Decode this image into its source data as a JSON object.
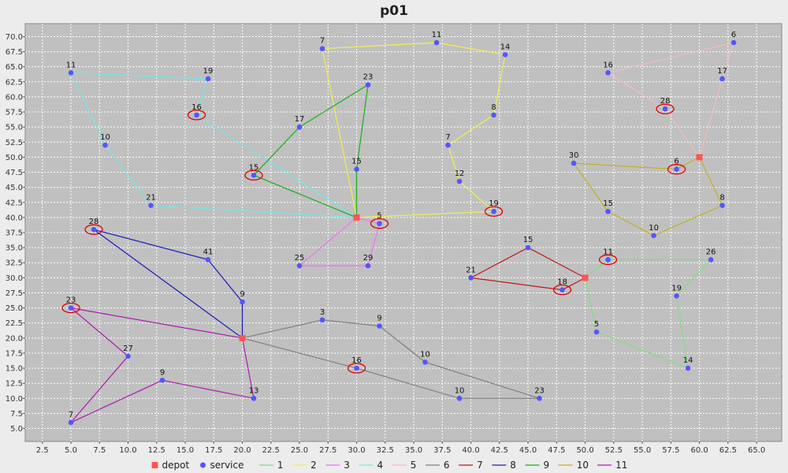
{
  "chart_data": {
    "type": "scatter",
    "title": "p01",
    "xlim": [
      1.0,
      67.2
    ],
    "ylim": [
      2.85,
      72.15
    ],
    "x_ticks": [
      "2.5",
      "5.0",
      "7.5",
      "10.0",
      "12.5",
      "15.0",
      "17.5",
      "20.0",
      "22.5",
      "25.0",
      "27.5",
      "30.0",
      "32.5",
      "35.0",
      "37.5",
      "40.0",
      "42.5",
      "45.0",
      "47.5",
      "50.0",
      "52.5",
      "55.0",
      "57.5",
      "60.0",
      "62.5",
      "65.0"
    ],
    "y_ticks": [
      "5.0",
      "7.5",
      "10.0",
      "12.5",
      "15.0",
      "17.5",
      "20.0",
      "22.5",
      "25.0",
      "27.5",
      "30.0",
      "32.5",
      "35.0",
      "37.5",
      "40.0",
      "42.5",
      "45.0",
      "47.5",
      "50.0",
      "52.5",
      "55.0",
      "57.5",
      "60.0",
      "62.5",
      "65.0",
      "67.5",
      "70.0"
    ],
    "grid": true,
    "legend_position": "bottom",
    "legend": [
      {
        "label": "depot",
        "color": "#ff5555",
        "kind": "square"
      },
      {
        "label": "service",
        "color": "#5555ff",
        "kind": "circle"
      },
      {
        "label": "1",
        "color": "#7fe07f",
        "kind": "line"
      },
      {
        "label": "2",
        "color": "#f0f050",
        "kind": "line"
      },
      {
        "label": "3",
        "color": "#f070f0",
        "kind": "line"
      },
      {
        "label": "4",
        "color": "#70e8e8",
        "kind": "line"
      },
      {
        "label": "5",
        "color": "#f4bcbc",
        "kind": "line"
      },
      {
        "label": "6",
        "color": "#808080",
        "kind": "line"
      },
      {
        "label": "7",
        "color": "#c01818",
        "kind": "line"
      },
      {
        "label": "8",
        "color": "#1818c0",
        "kind": "line"
      },
      {
        "label": "9",
        "color": "#18b018",
        "kind": "line"
      },
      {
        "label": "10",
        "color": "#c0b020",
        "kind": "line"
      },
      {
        "label": "11",
        "color": "#b018b0",
        "kind": "line"
      }
    ],
    "depots": [
      {
        "x": 30,
        "y": 40
      },
      {
        "x": 20,
        "y": 20
      },
      {
        "x": 50,
        "y": 30
      },
      {
        "x": 60,
        "y": 50
      }
    ],
    "services": [
      {
        "x": 37,
        "y": 69,
        "label": "11"
      },
      {
        "x": 27,
        "y": 68,
        "label": "7"
      },
      {
        "x": 43,
        "y": 67,
        "label": "14"
      },
      {
        "x": 63,
        "y": 69,
        "label": "6"
      },
      {
        "x": 5,
        "y": 64,
        "label": "11"
      },
      {
        "x": 17,
        "y": 63,
        "label": "19"
      },
      {
        "x": 31,
        "y": 62,
        "label": "23"
      },
      {
        "x": 52,
        "y": 64,
        "label": "16"
      },
      {
        "x": 62,
        "y": 63,
        "label": "17"
      },
      {
        "x": 16,
        "y": 57,
        "label": "16",
        "highlight": true
      },
      {
        "x": 57,
        "y": 58,
        "label": "28",
        "highlight": true
      },
      {
        "x": 42,
        "y": 57,
        "label": "8"
      },
      {
        "x": 25,
        "y": 55,
        "label": "17"
      },
      {
        "x": 8,
        "y": 52,
        "label": "10"
      },
      {
        "x": 38,
        "y": 52,
        "label": "7"
      },
      {
        "x": 49,
        "y": 49,
        "label": "30"
      },
      {
        "x": 58,
        "y": 48,
        "label": "6",
        "highlight": true
      },
      {
        "x": 30,
        "y": 48,
        "label": "15"
      },
      {
        "x": 21,
        "y": 47,
        "label": "15",
        "highlight": true
      },
      {
        "x": 39,
        "y": 46,
        "label": "12"
      },
      {
        "x": 12,
        "y": 42,
        "label": "21"
      },
      {
        "x": 62,
        "y": 42,
        "label": "8"
      },
      {
        "x": 42,
        "y": 41,
        "label": "19",
        "highlight": true
      },
      {
        "x": 52,
        "y": 41,
        "label": "15"
      },
      {
        "x": 32,
        "y": 39,
        "label": "5",
        "highlight": true
      },
      {
        "x": 7,
        "y": 38,
        "label": "28",
        "highlight": true
      },
      {
        "x": 56,
        "y": 37,
        "label": "10"
      },
      {
        "x": 45,
        "y": 35,
        "label": "15"
      },
      {
        "x": 17,
        "y": 33,
        "label": "41"
      },
      {
        "x": 52,
        "y": 33,
        "label": "11",
        "highlight": true
      },
      {
        "x": 61,
        "y": 33,
        "label": "26"
      },
      {
        "x": 25,
        "y": 32,
        "label": "25"
      },
      {
        "x": 31,
        "y": 32,
        "label": "29"
      },
      {
        "x": 40,
        "y": 30,
        "label": "21"
      },
      {
        "x": 48,
        "y": 28,
        "label": "18",
        "highlight": true
      },
      {
        "x": 58,
        "y": 27,
        "label": "19"
      },
      {
        "x": 20,
        "y": 26,
        "label": "9"
      },
      {
        "x": 5,
        "y": 25,
        "label": "23",
        "highlight": true
      },
      {
        "x": 27,
        "y": 23,
        "label": "3"
      },
      {
        "x": 32,
        "y": 22,
        "label": "9"
      },
      {
        "x": 51,
        "y": 21,
        "label": "5"
      },
      {
        "x": 10,
        "y": 17,
        "label": "27"
      },
      {
        "x": 36,
        "y": 16,
        "label": "10"
      },
      {
        "x": 30,
        "y": 15,
        "label": "16",
        "highlight": true
      },
      {
        "x": 59,
        "y": 15,
        "label": "14"
      },
      {
        "x": 13,
        "y": 13,
        "label": "9"
      },
      {
        "x": 21,
        "y": 10,
        "label": "13"
      },
      {
        "x": 39,
        "y": 10,
        "label": "10"
      },
      {
        "x": 46,
        "y": 10,
        "label": "23"
      },
      {
        "x": 5,
        "y": 6,
        "label": "7"
      }
    ],
    "routes": [
      {
        "name": "1",
        "color": "#7fe07f",
        "points": [
          [
            50,
            30
          ],
          [
            52,
            33
          ],
          [
            61,
            33
          ],
          [
            58,
            27
          ],
          [
            59,
            15
          ],
          [
            51,
            21
          ],
          [
            50,
            30
          ]
        ]
      },
      {
        "name": "2",
        "color": "#f0f050",
        "points": [
          [
            30,
            40
          ],
          [
            27,
            68
          ],
          [
            37,
            69
          ],
          [
            43,
            67
          ],
          [
            42,
            57
          ],
          [
            38,
            52
          ],
          [
            39,
            46
          ],
          [
            42,
            41
          ],
          [
            30,
            40
          ]
        ]
      },
      {
        "name": "3",
        "color": "#f070f0",
        "points": [
          [
            30,
            40
          ],
          [
            32,
            39
          ],
          [
            31,
            32
          ],
          [
            25,
            32
          ],
          [
            30,
            40
          ]
        ]
      },
      {
        "name": "4",
        "color": "#70e8e8",
        "points": [
          [
            30,
            40
          ],
          [
            16,
            57
          ],
          [
            17,
            63
          ],
          [
            5,
            64
          ],
          [
            8,
            52
          ],
          [
            12,
            42
          ],
          [
            30,
            40
          ]
        ]
      },
      {
        "name": "5",
        "color": "#f4bcbc",
        "points": [
          [
            60,
            50
          ],
          [
            57,
            58
          ],
          [
            52,
            64
          ],
          [
            63,
            69
          ],
          [
            62,
            63
          ],
          [
            60,
            50
          ]
        ]
      },
      {
        "name": "6",
        "color": "#808080",
        "points": [
          [
            20,
            20
          ],
          [
            27,
            23
          ],
          [
            32,
            22
          ],
          [
            36,
            16
          ],
          [
            46,
            10
          ],
          [
            39,
            10
          ],
          [
            30,
            15
          ],
          [
            20,
            20
          ]
        ]
      },
      {
        "name": "7",
        "color": "#c01818",
        "points": [
          [
            50,
            30
          ],
          [
            45,
            35
          ],
          [
            40,
            30
          ],
          [
            48,
            28
          ],
          [
            50,
            30
          ]
        ]
      },
      {
        "name": "8",
        "color": "#1818c0",
        "points": [
          [
            20,
            20
          ],
          [
            7,
            38
          ],
          [
            17,
            33
          ],
          [
            20,
            26
          ],
          [
            20,
            20
          ]
        ]
      },
      {
        "name": "9",
        "color": "#18b018",
        "points": [
          [
            30,
            40
          ],
          [
            21,
            47
          ],
          [
            25,
            55
          ],
          [
            31,
            62
          ],
          [
            30,
            48
          ],
          [
            30,
            40
          ]
        ]
      },
      {
        "name": "10",
        "color": "#c0b020",
        "points": [
          [
            60,
            50
          ],
          [
            58,
            48
          ],
          [
            49,
            49
          ],
          [
            52,
            41
          ],
          [
            56,
            37
          ],
          [
            62,
            42
          ],
          [
            60,
            50
          ]
        ]
      },
      {
        "name": "11",
        "color": "#b018b0",
        "points": [
          [
            20,
            20
          ],
          [
            5,
            25
          ],
          [
            10,
            17
          ],
          [
            5,
            6
          ],
          [
            13,
            13
          ],
          [
            21,
            10
          ],
          [
            20,
            20
          ]
        ]
      }
    ]
  }
}
